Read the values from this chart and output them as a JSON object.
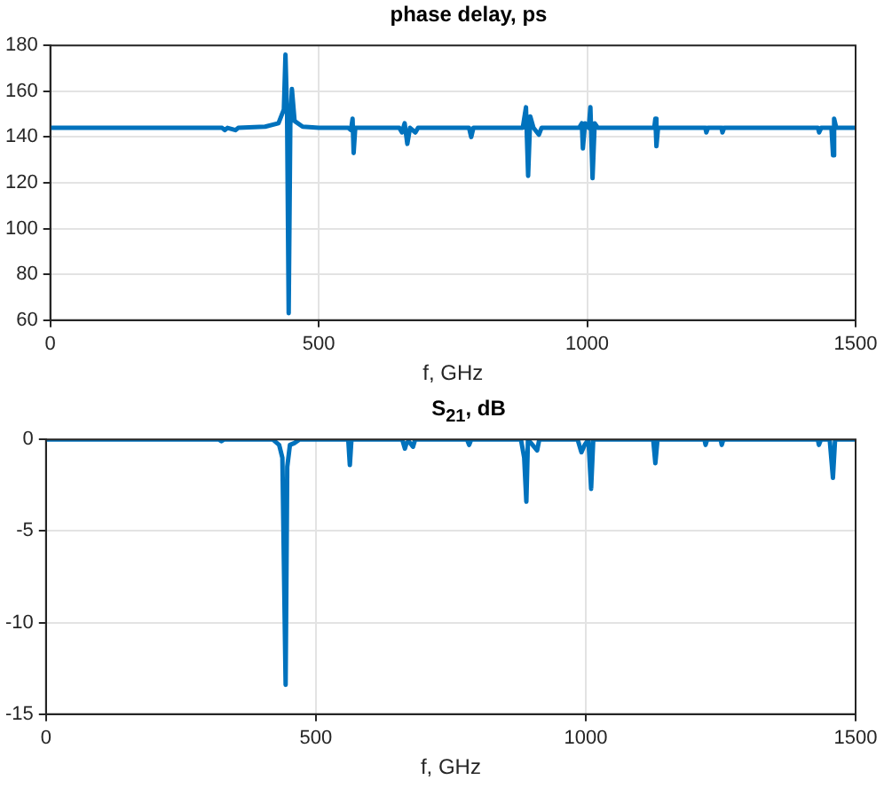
{
  "chart_data": [
    {
      "type": "line",
      "title": "phase delay, ps",
      "xlabel": "f, GHz",
      "xlim": [
        0,
        1500
      ],
      "xticks": [
        0,
        500,
        1000,
        1500
      ],
      "ylim": [
        60,
        180
      ],
      "yticks": [
        60,
        80,
        100,
        120,
        140,
        160,
        180
      ],
      "grid": true,
      "legend": false,
      "marker": "none",
      "line_style": "solid",
      "series": [
        {
          "color": "#0072bd",
          "x": [
            0,
            320,
            325,
            330,
            345,
            350,
            400,
            425,
            435,
            438,
            441,
            444,
            447,
            450,
            455,
            470,
            500,
            555,
            560,
            563,
            565,
            568,
            650,
            655,
            660,
            665,
            670,
            680,
            685,
            780,
            784,
            788,
            880,
            886,
            890,
            894,
            900,
            910,
            915,
            985,
            990,
            992,
            996,
            1003,
            1006,
            1010,
            1014,
            1020,
            1125,
            1127,
            1129,
            1132,
            1220,
            1222,
            1225,
            1250,
            1252,
            1255,
            1430,
            1432,
            1436,
            1455,
            1458,
            1460,
            1464,
            1500
          ],
          "values": [
            144,
            144,
            143,
            144,
            143,
            144,
            144.5,
            146,
            152,
            176,
            150,
            63,
            145,
            161,
            147,
            144.5,
            144,
            144,
            143,
            148,
            133,
            144,
            144,
            142,
            146,
            137,
            144,
            142,
            144,
            144,
            140,
            144,
            144,
            153,
            123,
            149,
            144,
            141,
            144,
            144,
            146,
            135,
            146,
            144,
            153,
            122,
            146,
            144,
            144,
            148,
            136,
            144,
            144,
            142,
            144,
            144,
            142,
            144,
            144,
            142,
            144,
            144,
            132,
            148,
            144,
            144
          ]
        }
      ]
    },
    {
      "type": "line",
      "title": "S$_{21}$, dB",
      "xlabel": "f, GHz",
      "xlim": [
        0,
        1500
      ],
      "xticks": [
        0,
        500,
        1000,
        1500
      ],
      "ylim": [
        -15,
        0
      ],
      "yticks": [
        -15,
        -10,
        -5,
        0
      ],
      "grid": true,
      "legend": false,
      "marker": "none",
      "line_style": "solid",
      "series": [
        {
          "color": "#0072bd",
          "x": [
            0,
            320,
            325,
            330,
            420,
            432,
            438,
            444,
            447,
            452,
            460,
            470,
            560,
            563,
            566,
            660,
            665,
            668,
            672,
            680,
            684,
            780,
            784,
            788,
            880,
            886,
            890,
            893,
            910,
            914,
            985,
            992,
            998,
            1005,
            1010,
            1014,
            1125,
            1129,
            1133,
            1220,
            1222,
            1225,
            1250,
            1252,
            1255,
            1430,
            1432,
            1436,
            1452,
            1458,
            1462,
            1500
          ],
          "values": [
            0,
            0,
            -0.1,
            0,
            0,
            -0.3,
            -1.0,
            -13.4,
            -1.5,
            -0.3,
            -0.2,
            0,
            0,
            -1.4,
            0,
            0,
            -0.5,
            -0.2,
            -0.1,
            -0.4,
            0,
            0,
            -0.3,
            0,
            0,
            -1.0,
            -3.4,
            0,
            -0.6,
            0,
            0,
            -0.7,
            -0.3,
            0,
            -2.7,
            0,
            0,
            -1.3,
            0,
            0,
            -0.3,
            0,
            0,
            -0.3,
            0,
            0,
            -0.3,
            0,
            0,
            -2.1,
            0,
            0
          ]
        }
      ]
    }
  ]
}
